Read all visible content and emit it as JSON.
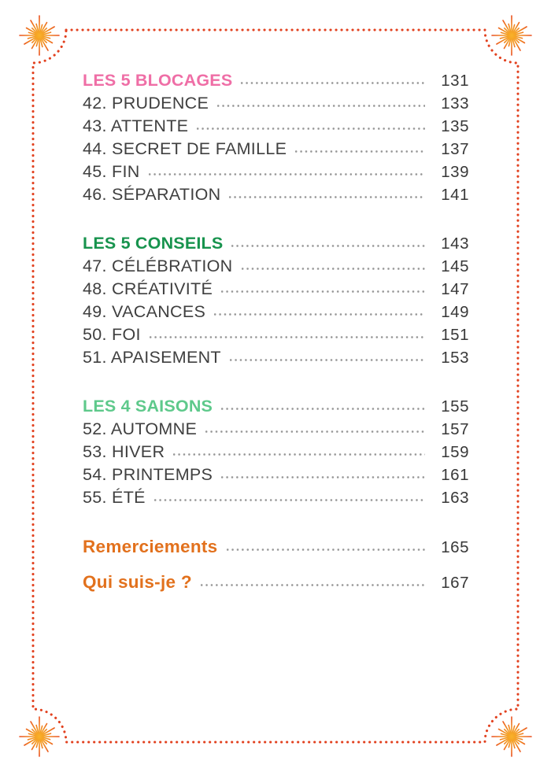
{
  "page": {
    "background": "#ffffff",
    "border_dot_color": "#e2411f",
    "leader_dot_color": "#979797",
    "entry_text_color": "#3f3f3f",
    "page_number_color": "#383838",
    "corner_star_colors": {
      "center": "#f9b32a",
      "mid": "#f29422",
      "tip": "#e9491e"
    }
  },
  "toc": {
    "sections": [
      {
        "heading": {
          "label": "LES 5 BLOCAGES",
          "page": "131",
          "color": "#ef6ea6"
        },
        "entries": [
          {
            "label": "42. PRUDENCE",
            "page": "133"
          },
          {
            "label": "43. ATTENTE",
            "page": "135"
          },
          {
            "label": "44. SECRET DE FAMILLE",
            "page": "137"
          },
          {
            "label": "45. FIN",
            "page": "139"
          },
          {
            "label": "46. SÉPARATION",
            "page": "141"
          }
        ]
      },
      {
        "heading": {
          "label": "LES 5 CONSEILS",
          "page": "143",
          "color": "#17934d"
        },
        "entries": [
          {
            "label": "47. CÉLÉBRATION",
            "page": "145"
          },
          {
            "label": "48. CRÉATIVITÉ",
            "page": "147"
          },
          {
            "label": "49. VACANCES",
            "page": "149"
          },
          {
            "label": "50. FOI",
            "page": "151"
          },
          {
            "label": "51. APAISEMENT",
            "page": "153"
          }
        ]
      },
      {
        "heading": {
          "label": "LES 4 SAISONS",
          "page": "155",
          "color": "#5ec98b"
        },
        "entries": [
          {
            "label": "52. AUTOMNE",
            "page": "157"
          },
          {
            "label": "53. HIVER",
            "page": "159"
          },
          {
            "label": "54. PRINTEMPS",
            "page": "161"
          },
          {
            "label": "55. ÉTÉ",
            "page": "163"
          }
        ]
      }
    ],
    "footer_links": [
      {
        "label": "Remerciements",
        "page": "165",
        "color": "#e2711d"
      },
      {
        "label": "Qui suis-je ?",
        "page": "167",
        "color": "#e2711d"
      }
    ]
  }
}
